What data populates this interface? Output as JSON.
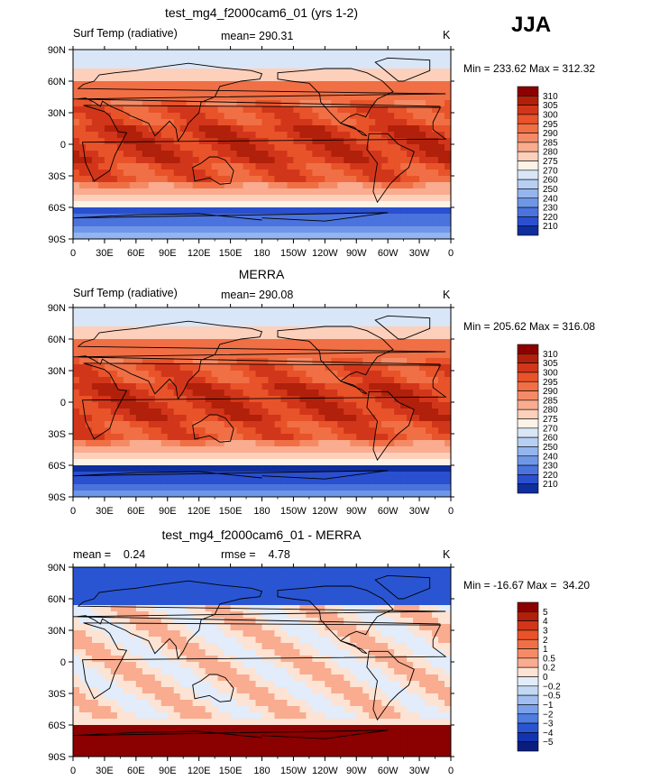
{
  "season": "JJA",
  "chart_data": [
    {
      "type": "heatmap",
      "title": "test_mg4_f2000cam6_01 (yrs 1-2)",
      "left_label": "Surf Temp (radiative)",
      "mean_label": "mean= 290.31",
      "units": "K",
      "min_max": "Min = 233.62 Max = 312.32",
      "min": 233.62,
      "max": 312.32,
      "xlabels": [
        "0",
        "30E",
        "60E",
        "90E",
        "120E",
        "150E",
        "180",
        "150W",
        "120W",
        "90W",
        "60W",
        "30W",
        "0"
      ],
      "ylabels": [
        "90N",
        "60N",
        "30N",
        "0",
        "30S",
        "60S",
        "90S"
      ],
      "levels": [
        "310",
        "305",
        "300",
        "295",
        "290",
        "285",
        "280",
        "275",
        "270",
        "260",
        "250",
        "240",
        "230",
        "220",
        "210"
      ],
      "colors": [
        "#8b0000",
        "#b0200a",
        "#d2361a",
        "#e8532a",
        "#f16f45",
        "#f58b66",
        "#f9ac8f",
        "#fcd0bb",
        "#fdf2e7",
        "#d9e6f7",
        "#b7cff3",
        "#94b5ee",
        "#6f97e8",
        "#4b73dd",
        "#2a4fcf",
        "#0f2e9c"
      ]
    },
    {
      "type": "heatmap",
      "title": "MERRA",
      "left_label": "Surf Temp (radiative)",
      "mean_label": "mean= 290.08",
      "units": "K",
      "min_max": "Min = 205.62 Max = 316.08",
      "min": 205.62,
      "max": 316.08,
      "xlabels": [
        "0",
        "30E",
        "60E",
        "90E",
        "120E",
        "150E",
        "180",
        "150W",
        "120W",
        "90W",
        "60W",
        "30W",
        "0"
      ],
      "ylabels": [
        "90N",
        "60N",
        "30N",
        "0",
        "30S",
        "60S",
        "90S"
      ],
      "levels": [
        "310",
        "305",
        "300",
        "295",
        "290",
        "285",
        "280",
        "275",
        "270",
        "260",
        "250",
        "240",
        "230",
        "220",
        "210"
      ],
      "colors": [
        "#8b0000",
        "#b0200a",
        "#d2361a",
        "#e8532a",
        "#f16f45",
        "#f58b66",
        "#f9ac8f",
        "#fcd0bb",
        "#fdf2e7",
        "#d9e6f7",
        "#b7cff3",
        "#94b5ee",
        "#6f97e8",
        "#4b73dd",
        "#2a4fcf",
        "#0f2e9c"
      ]
    },
    {
      "type": "heatmap",
      "title": "test_mg4_f2000cam6_01 - MERRA",
      "left_label": "mean =    0.24",
      "mean_label": "rmse =    4.78",
      "units": "K",
      "min_max": "Min = -16.67 Max =  34.20",
      "min": -16.67,
      "max": 34.2,
      "xlabels": [
        "0",
        "30E",
        "60E",
        "90E",
        "120E",
        "150E",
        "180",
        "150W",
        "120W",
        "90W",
        "60W",
        "30W",
        "0"
      ],
      "ylabels": [
        "90N",
        "60N",
        "30N",
        "0",
        "30S",
        "60S",
        "90S"
      ],
      "levels": [
        "5",
        "4",
        "3",
        "2",
        "1",
        "0.5",
        "0.2",
        "0",
        "−0.2",
        "−0.5",
        "−1",
        "−2",
        "−3",
        "−4",
        "−5"
      ],
      "colors": [
        "#8b0000",
        "#b0200a",
        "#d2361a",
        "#e8532a",
        "#f16f45",
        "#f58b66",
        "#f9ac8f",
        "#fde3d3",
        "#e2ecfa",
        "#c3d8f4",
        "#a0bff0",
        "#7aa0ea",
        "#4f7de0",
        "#2a55d2",
        "#1234b0",
        "#0a1c80"
      ]
    }
  ]
}
